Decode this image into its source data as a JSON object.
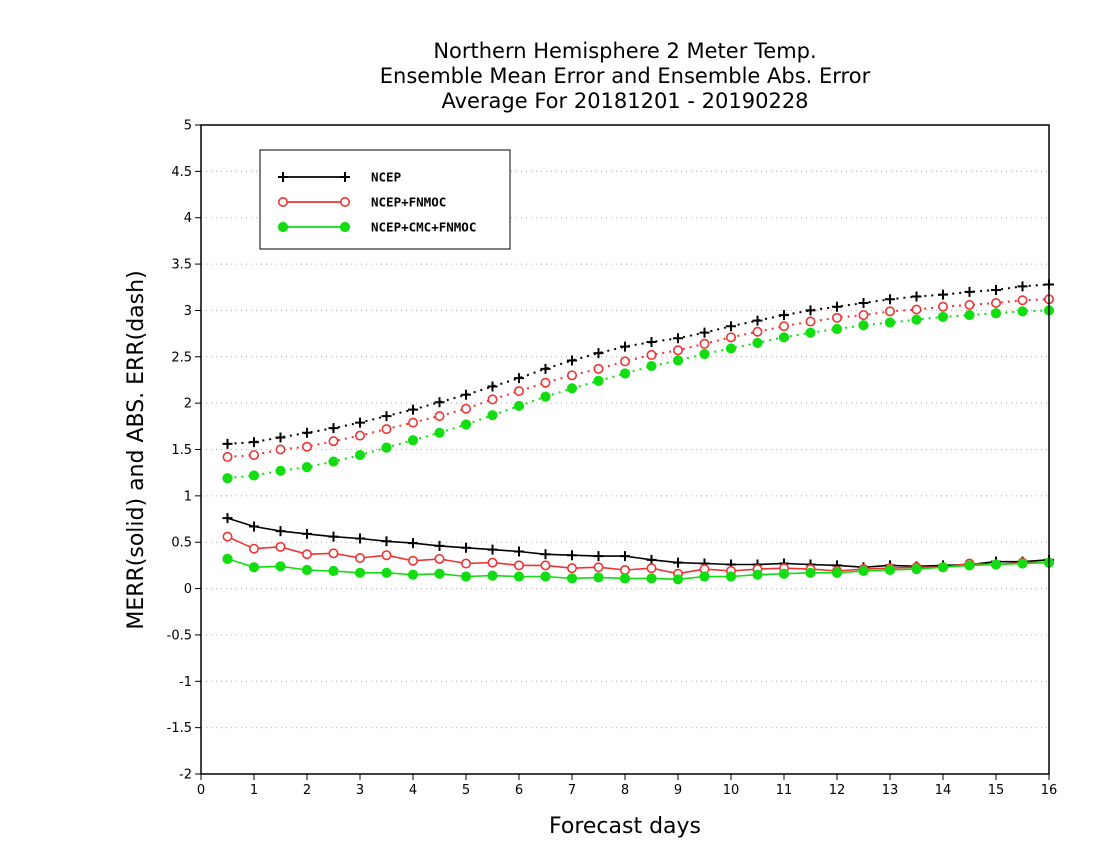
{
  "chart_data": {
    "type": "line",
    "title_lines": [
      "Northern Hemisphere 2 Meter Temp.",
      "Ensemble Mean Error and Ensemble Abs. Error",
      "Average For 20181201 - 20190228"
    ],
    "xlabel": "Forecast days",
    "ylabel": "MERR(solid) and ABS. ERR(dash)",
    "xlim": [
      0,
      16
    ],
    "ylim": [
      -2,
      5
    ],
    "x_ticks": [
      "0",
      "1",
      "2",
      "3",
      "4",
      "5",
      "6",
      "7",
      "8",
      "9",
      "10",
      "11",
      "12",
      "13",
      "14",
      "15",
      "16"
    ],
    "y_ticks": [
      "-2",
      "-1.5",
      "-1",
      "-0.5",
      "0",
      "0.5",
      "1",
      "1.5",
      "2",
      "2.5",
      "3",
      "3.5",
      "4",
      "4.5",
      "5"
    ],
    "grid": true,
    "legend_position": "top-left",
    "x": [
      0.5,
      1,
      1.5,
      2,
      2.5,
      3,
      3.5,
      4,
      4.5,
      5,
      5.5,
      6,
      6.5,
      7,
      7.5,
      8,
      8.5,
      9,
      9.5,
      10,
      10.5,
      11,
      11.5,
      12,
      12.5,
      13,
      13.5,
      14,
      14.5,
      15,
      15.5,
      16
    ],
    "series": [
      {
        "name": "NCEP",
        "color": "#000000",
        "marker": "plus",
        "merr": [
          0.76,
          0.67,
          0.62,
          0.59,
          0.56,
          0.54,
          0.51,
          0.49,
          0.46,
          0.44,
          0.42,
          0.4,
          0.37,
          0.36,
          0.35,
          0.35,
          0.31,
          0.28,
          0.27,
          0.26,
          0.26,
          0.27,
          0.26,
          0.25,
          0.23,
          0.25,
          0.24,
          0.25,
          0.26,
          0.29,
          0.29,
          0.31
        ],
        "abs_err": [
          1.56,
          1.58,
          1.63,
          1.68,
          1.73,
          1.79,
          1.86,
          1.93,
          2.01,
          2.09,
          2.18,
          2.27,
          2.37,
          2.46,
          2.54,
          2.61,
          2.66,
          2.7,
          2.76,
          2.83,
          2.89,
          2.95,
          3.0,
          3.04,
          3.08,
          3.12,
          3.15,
          3.17,
          3.2,
          3.22,
          3.26,
          3.28
        ]
      },
      {
        "name": "NCEP+FNMOC",
        "color": "#ee3333",
        "marker": "open-circle",
        "merr": [
          0.56,
          0.43,
          0.45,
          0.37,
          0.38,
          0.33,
          0.36,
          0.3,
          0.32,
          0.27,
          0.28,
          0.25,
          0.25,
          0.22,
          0.23,
          0.2,
          0.22,
          0.16,
          0.21,
          0.19,
          0.21,
          0.22,
          0.21,
          0.19,
          0.21,
          0.22,
          0.23,
          0.23,
          0.27,
          0.26,
          0.28,
          0.28
        ],
        "abs_err": [
          1.42,
          1.44,
          1.5,
          1.53,
          1.59,
          1.65,
          1.72,
          1.79,
          1.86,
          1.94,
          2.04,
          2.13,
          2.22,
          2.3,
          2.37,
          2.45,
          2.52,
          2.57,
          2.64,
          2.71,
          2.77,
          2.83,
          2.88,
          2.92,
          2.95,
          2.99,
          3.01,
          3.04,
          3.06,
          3.08,
          3.11,
          3.12
        ]
      },
      {
        "name": "NCEP+CMC+FNMOC",
        "color": "#11dd11",
        "marker": "filled-circle",
        "merr": [
          0.32,
          0.23,
          0.24,
          0.2,
          0.19,
          0.17,
          0.17,
          0.15,
          0.16,
          0.13,
          0.14,
          0.13,
          0.13,
          0.11,
          0.12,
          0.11,
          0.11,
          0.1,
          0.13,
          0.13,
          0.15,
          0.16,
          0.17,
          0.17,
          0.19,
          0.2,
          0.21,
          0.23,
          0.25,
          0.26,
          0.27,
          0.28
        ],
        "abs_err": [
          1.19,
          1.22,
          1.27,
          1.31,
          1.37,
          1.44,
          1.52,
          1.6,
          1.68,
          1.77,
          1.87,
          1.97,
          2.07,
          2.16,
          2.24,
          2.32,
          2.4,
          2.46,
          2.53,
          2.59,
          2.65,
          2.71,
          2.76,
          2.8,
          2.84,
          2.87,
          2.9,
          2.93,
          2.95,
          2.97,
          2.99,
          3.0
        ]
      }
    ]
  }
}
